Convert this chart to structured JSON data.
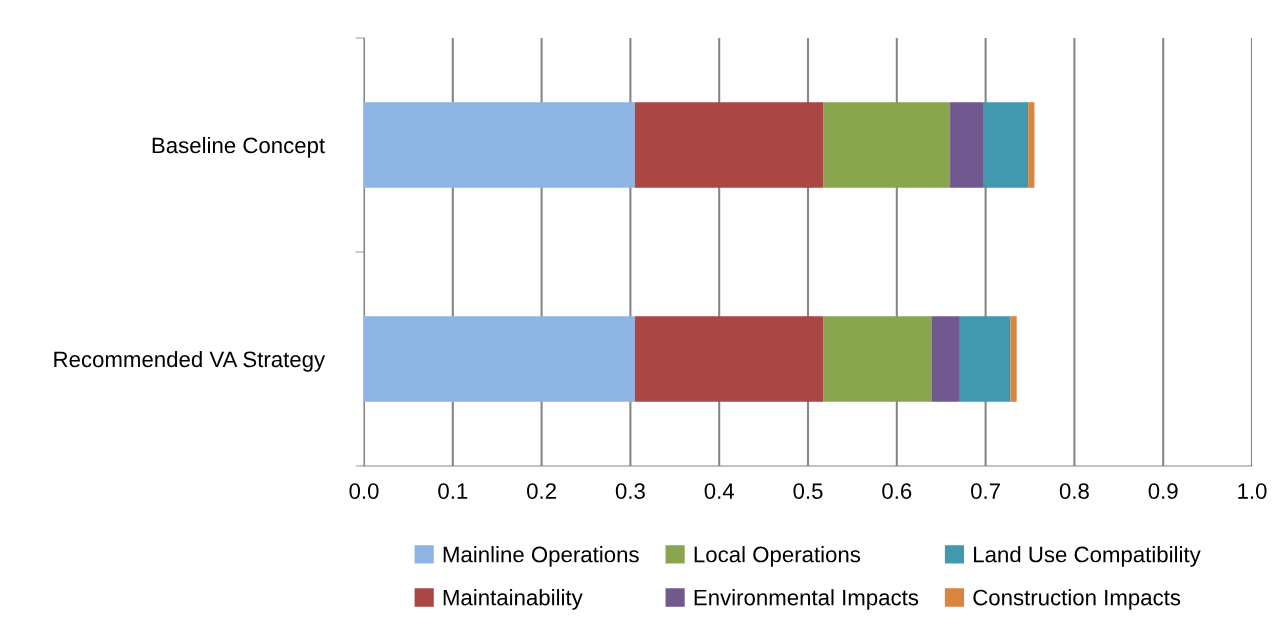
{
  "chart_data": {
    "type": "bar",
    "orientation": "horizontal",
    "stacked": true,
    "categories": [
      "Baseline Concept",
      "Recommended VA Strategy"
    ],
    "series": [
      {
        "name": "Mainline Operations",
        "color": "#8eb4e3",
        "values": [
          0.305,
          0.305
        ]
      },
      {
        "name": "Maintainability",
        "color": "#aa4643",
        "values": [
          0.212,
          0.212
        ]
      },
      {
        "name": "Local Operations",
        "color": "#89a54e",
        "values": [
          0.143,
          0.122
        ]
      },
      {
        "name": "Environmental Impacts",
        "color": "#71588f",
        "values": [
          0.038,
          0.032
        ]
      },
      {
        "name": "Land Use Compatibility",
        "color": "#4198af",
        "values": [
          0.05,
          0.057
        ]
      },
      {
        "name": "Construction Impacts",
        "color": "#db843d",
        "values": [
          0.007,
          0.007
        ]
      }
    ],
    "xlim": [
      0,
      1
    ],
    "xticks": [
      {
        "value": 0,
        "label": "0.0"
      },
      {
        "value": 0.1,
        "label": "0.1"
      },
      {
        "value": 0.2,
        "label": "0.2"
      },
      {
        "value": 0.3,
        "label": "0.3"
      },
      {
        "value": 0.4,
        "label": "0.4"
      },
      {
        "value": 0.5,
        "label": "0.5"
      },
      {
        "value": 0.6,
        "label": "0.6"
      },
      {
        "value": 0.7,
        "label": "0.7"
      },
      {
        "value": 0.8,
        "label": "0.8"
      },
      {
        "value": 0.9,
        "label": "0.9"
      },
      {
        "value": 1,
        "label": "1.0"
      }
    ],
    "grid": "x",
    "legend": "bottom"
  }
}
